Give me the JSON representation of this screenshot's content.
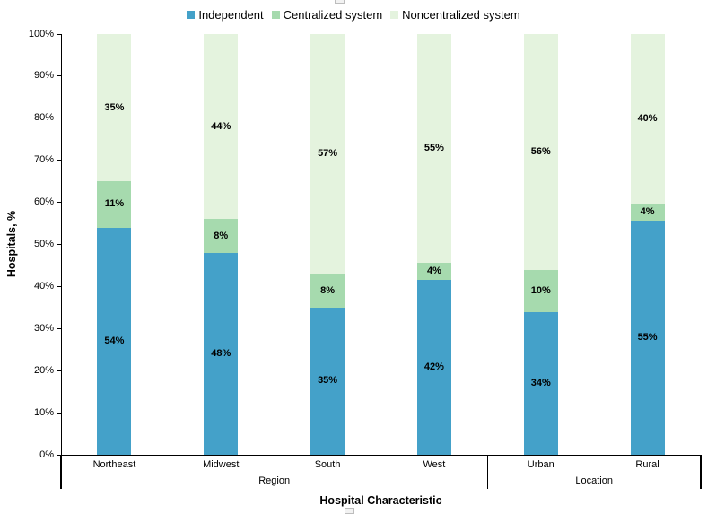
{
  "chart_data": {
    "type": "bar",
    "stacked": true,
    "percent_stacked": true,
    "title": "",
    "xlabel": "Hospital Characteristic",
    "ylabel": "Hospitals, %",
    "ylim": [
      0,
      100
    ],
    "yticks": [
      "0%",
      "10%",
      "20%",
      "30%",
      "40%",
      "50%",
      "60%",
      "70%",
      "80%",
      "90%",
      "100%"
    ],
    "grid": false,
    "legend_position": "top",
    "data_label_suffix": "%",
    "categories": [
      "Northeast",
      "Midwest",
      "South",
      "West",
      "Urban",
      "Rural"
    ],
    "category_groups": [
      {
        "label": "Region",
        "count": 4
      },
      {
        "label": "Location",
        "count": 2
      }
    ],
    "series": [
      {
        "name": "Independent",
        "color": "#44A1C9",
        "values": [
          54,
          48,
          35,
          42,
          34,
          55
        ]
      },
      {
        "name": "Centralized system",
        "color": "#A6DAAE",
        "values": [
          11,
          8,
          8,
          4,
          10,
          4
        ]
      },
      {
        "name": "Noncentralized system",
        "color": "#E4F3DE",
        "values": [
          35,
          44,
          57,
          55,
          56,
          40
        ]
      }
    ]
  }
}
